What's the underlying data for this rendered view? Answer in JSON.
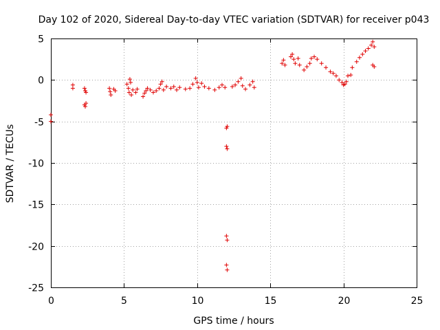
{
  "chart_data": {
    "type": "scatter",
    "title": "Day 102 of 2020, Sidereal Day-to-day VTEC variation (SDTVAR) for receiver p043",
    "xlabel": "GPS time / hours",
    "ylabel": "SDTVAR / TECUs",
    "xlim": [
      0,
      25
    ],
    "ylim": [
      -25,
      5
    ],
    "xticks": [
      0,
      5,
      10,
      15,
      20,
      25
    ],
    "yticks": [
      5,
      0,
      -5,
      -10,
      -15,
      -20,
      -25
    ],
    "xtick_labels": [
      "0",
      "5",
      "10",
      "15",
      "20",
      "25"
    ],
    "ytick_labels": [
      "5",
      "0",
      "-5",
      "-10",
      "-15",
      "-20",
      "-25"
    ],
    "grid": true,
    "marker": "+",
    "series_color": "#e00000",
    "series": [
      {
        "name": "SDTVAR",
        "points": [
          [
            0.0,
            -4.2
          ],
          [
            0.0,
            -5.0
          ],
          [
            1.5,
            -0.6
          ],
          [
            1.5,
            -1.0
          ],
          [
            2.3,
            -1.0
          ],
          [
            2.35,
            -1.3
          ],
          [
            2.4,
            -1.5
          ],
          [
            2.3,
            -3.0
          ],
          [
            2.35,
            -3.2
          ],
          [
            2.4,
            -2.8
          ],
          [
            4.0,
            -1.0
          ],
          [
            4.05,
            -1.4
          ],
          [
            4.1,
            -1.8
          ],
          [
            4.3,
            -1.1
          ],
          [
            4.4,
            -1.3
          ],
          [
            5.2,
            -0.5
          ],
          [
            5.3,
            -1.0
          ],
          [
            5.35,
            -1.5
          ],
          [
            5.4,
            0.1
          ],
          [
            5.45,
            -0.3
          ],
          [
            5.5,
            -1.8
          ],
          [
            5.6,
            -1.2
          ],
          [
            5.8,
            -1.5
          ],
          [
            5.9,
            -1.1
          ],
          [
            6.3,
            -2.0
          ],
          [
            6.4,
            -1.6
          ],
          [
            6.5,
            -1.3
          ],
          [
            6.6,
            -1.0
          ],
          [
            6.8,
            -1.2
          ],
          [
            7.0,
            -1.5
          ],
          [
            7.2,
            -1.3
          ],
          [
            7.4,
            -1.0
          ],
          [
            7.5,
            -0.5
          ],
          [
            7.6,
            -0.2
          ],
          [
            7.7,
            -1.2
          ],
          [
            7.9,
            -0.8
          ],
          [
            8.2,
            -1.0
          ],
          [
            8.4,
            -0.8
          ],
          [
            8.6,
            -1.2
          ],
          [
            8.8,
            -0.9
          ],
          [
            9.2,
            -1.1
          ],
          [
            9.5,
            -1.0
          ],
          [
            9.7,
            -0.5
          ],
          [
            9.9,
            0.2
          ],
          [
            10.0,
            -0.3
          ],
          [
            10.1,
            -0.9
          ],
          [
            10.3,
            -0.4
          ],
          [
            10.5,
            -0.8
          ],
          [
            10.8,
            -1.0
          ],
          [
            11.2,
            -1.2
          ],
          [
            11.5,
            -0.9
          ],
          [
            11.7,
            -0.6
          ],
          [
            11.9,
            -0.9
          ],
          [
            12.0,
            -5.8
          ],
          [
            12.05,
            -5.6
          ],
          [
            12.0,
            -8.0
          ],
          [
            12.05,
            -8.3
          ],
          [
            12.0,
            -18.8
          ],
          [
            12.05,
            -19.3
          ],
          [
            12.0,
            -22.3
          ],
          [
            12.05,
            -22.9
          ],
          [
            12.4,
            -0.8
          ],
          [
            12.6,
            -0.6
          ],
          [
            12.8,
            -0.2
          ],
          [
            13.0,
            0.2
          ],
          [
            13.1,
            -0.7
          ],
          [
            13.3,
            -1.1
          ],
          [
            13.6,
            -0.6
          ],
          [
            13.8,
            -0.2
          ],
          [
            13.9,
            -0.9
          ],
          [
            15.8,
            2.0
          ],
          [
            15.9,
            2.4
          ],
          [
            16.0,
            1.8
          ],
          [
            16.4,
            2.8
          ],
          [
            16.5,
            3.1
          ],
          [
            16.6,
            2.5
          ],
          [
            16.7,
            2.0
          ],
          [
            16.9,
            2.6
          ],
          [
            17.0,
            1.8
          ],
          [
            17.3,
            1.2
          ],
          [
            17.5,
            1.6
          ],
          [
            17.7,
            2.0
          ],
          [
            17.8,
            2.6
          ],
          [
            18.0,
            2.8
          ],
          [
            18.2,
            2.5
          ],
          [
            18.5,
            2.0
          ],
          [
            18.8,
            1.5
          ],
          [
            19.1,
            1.0
          ],
          [
            19.3,
            0.8
          ],
          [
            19.5,
            0.5
          ],
          [
            19.7,
            0.0
          ],
          [
            19.9,
            -0.3
          ],
          [
            20.0,
            -0.6
          ],
          [
            20.1,
            -0.5
          ],
          [
            20.2,
            -0.2
          ],
          [
            20.3,
            0.5
          ],
          [
            20.5,
            0.6
          ],
          [
            20.6,
            1.5
          ],
          [
            20.9,
            2.2
          ],
          [
            21.1,
            2.7
          ],
          [
            21.3,
            3.1
          ],
          [
            21.5,
            3.5
          ],
          [
            21.7,
            3.8
          ],
          [
            21.9,
            4.2
          ],
          [
            22.0,
            4.6
          ],
          [
            22.1,
            4.0
          ],
          [
            22.0,
            1.8
          ],
          [
            22.1,
            1.6
          ]
        ]
      }
    ]
  }
}
